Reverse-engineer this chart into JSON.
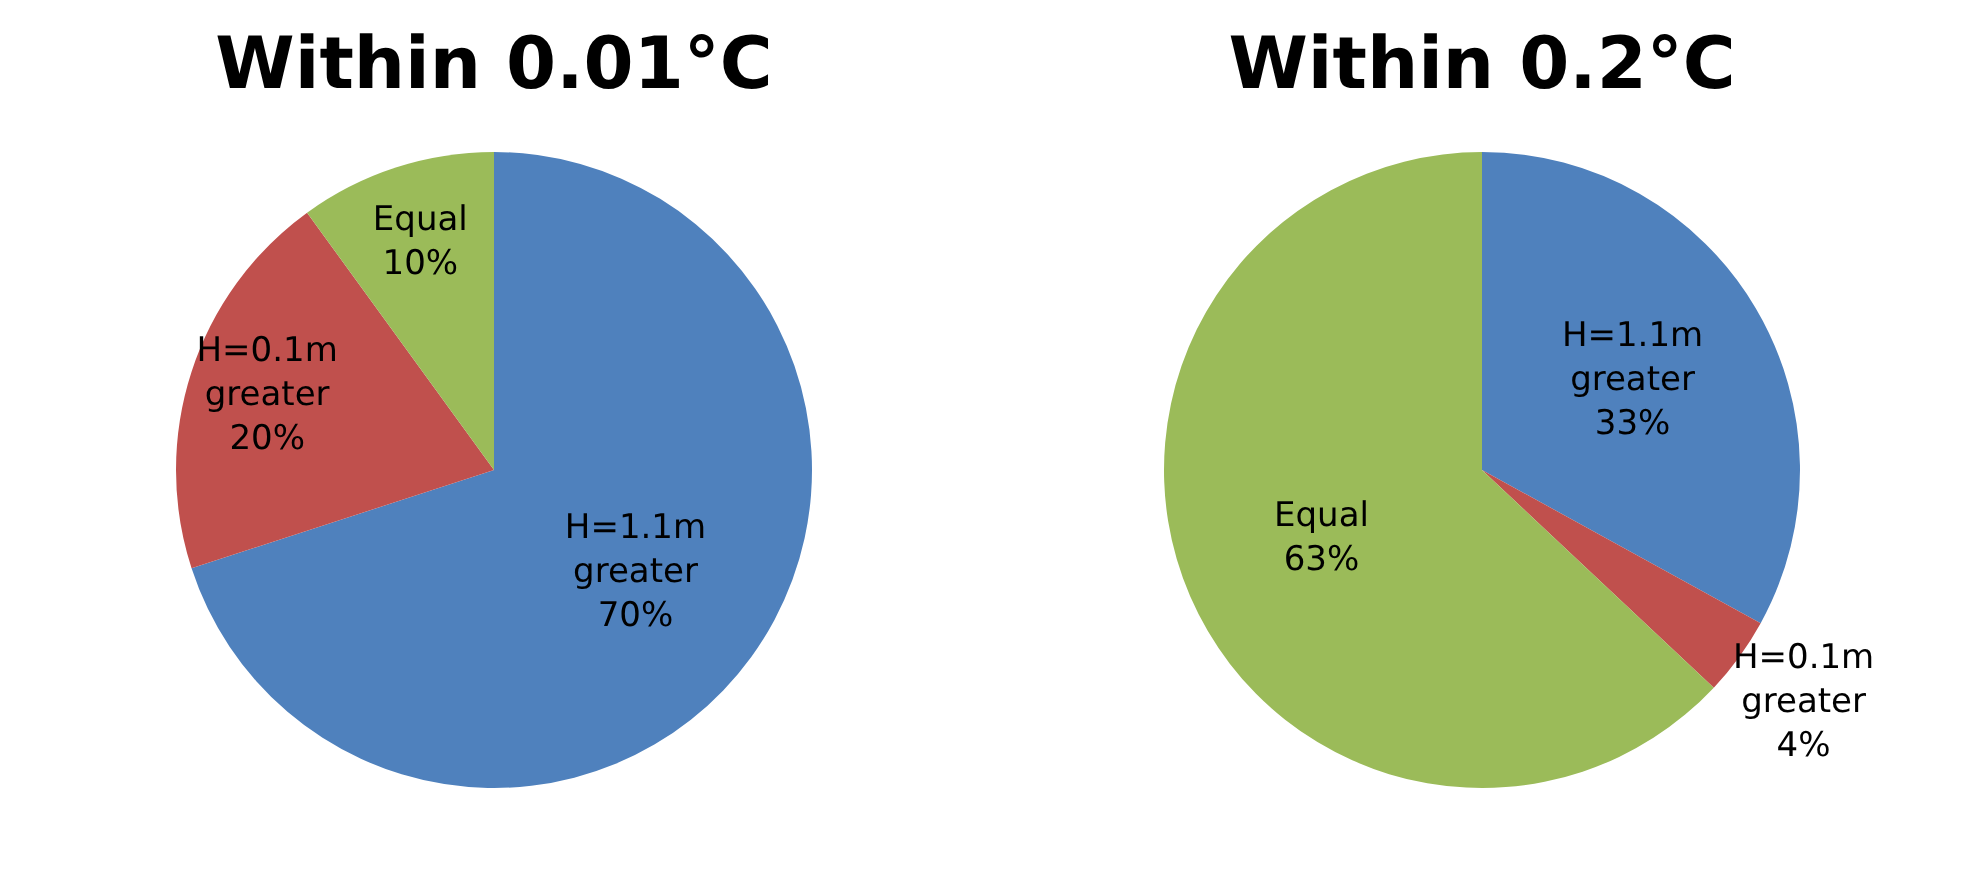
{
  "chart_data": [
    {
      "type": "pie",
      "title": "Within 0.01°C",
      "categories": [
        "H=1.1m greater",
        "H=0.1m greater",
        "Equal"
      ],
      "values": [
        70,
        20,
        10
      ],
      "colors": [
        "#4f81bd",
        "#c0504d",
        "#9bbb59"
      ],
      "value_labels": [
        "70%",
        "20%",
        "10%"
      ],
      "legend": false
    },
    {
      "type": "pie",
      "title": "Within 0.2°C",
      "categories": [
        "H=1.1m greater",
        "H=0.1m greater",
        "Equal"
      ],
      "values": [
        33,
        4,
        63
      ],
      "colors": [
        "#4f81bd",
        "#c0504d",
        "#9bbb59"
      ],
      "value_labels": [
        "33%",
        "4%",
        "63%"
      ],
      "legend": false
    }
  ]
}
